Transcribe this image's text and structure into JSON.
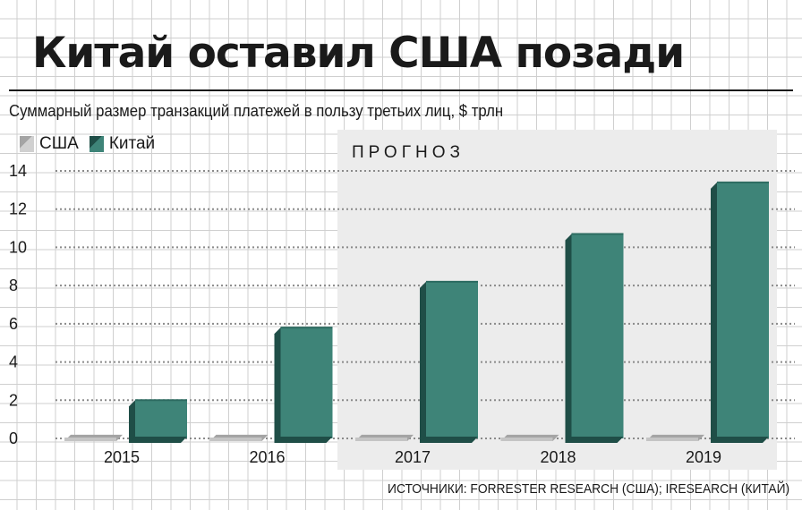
{
  "title": "Китай оставил США позади",
  "subtitle": "Суммарный размер транзакций платежей в пользу третьих лиц, $ трлн",
  "source": "ИСТОЧНИКИ: FORRESTER RESEARCH (США); IRESEARCH (КИТАЙ)",
  "forecast_label": "ПРОГНОЗ",
  "legend": [
    {
      "name": "США",
      "color": "#c4c4c4"
    },
    {
      "name": "Китай",
      "color": "#3e8478"
    }
  ],
  "colors": {
    "china_front": "#3e8478",
    "china_side": "#1f4e47",
    "china_top": "#2d6b61",
    "usa_front": "#c4c4c4",
    "usa_top": "#a4a4a4",
    "forecast_bg": "#ececec"
  },
  "chart_data": {
    "type": "bar",
    "categories": [
      "2015",
      "2016",
      "2017",
      "2018",
      "2019"
    ],
    "series": [
      {
        "name": "США",
        "values": [
          0.05,
          0.05,
          0.05,
          0.05,
          0.05
        ]
      },
      {
        "name": "Китай",
        "values": [
          2.0,
          5.8,
          8.2,
          10.7,
          13.4
        ]
      }
    ],
    "ylabel": "$ трлн",
    "ylim": [
      0,
      14
    ],
    "yticks": [
      "0",
      "2",
      "4",
      "6",
      "8",
      "10",
      "12",
      "14"
    ],
    "forecast_categories": [
      "2017",
      "2018",
      "2019"
    ],
    "grid": true,
    "legend_position": "top-left"
  }
}
